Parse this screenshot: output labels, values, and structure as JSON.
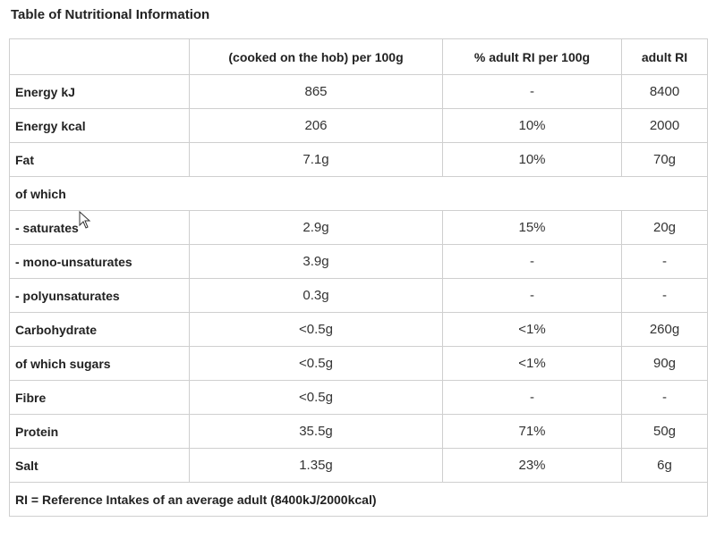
{
  "title": "Table of Nutritional Information",
  "headers": [
    "",
    "(cooked on the hob) per 100g",
    "% adult RI per 100g",
    "adult RI"
  ],
  "rows": [
    {
      "label": "Energy kJ",
      "per100g": "865",
      "ri_pct": "-",
      "adult_ri": "8400"
    },
    {
      "label": "Energy kcal",
      "per100g": "206",
      "ri_pct": "10%",
      "adult_ri": "2000"
    },
    {
      "label": "Fat",
      "per100g": "7.1g",
      "ri_pct": "10%",
      "adult_ri": "70g"
    },
    {
      "label": "of which"
    },
    {
      "label": "- saturates",
      "per100g": "2.9g",
      "ri_pct": "15%",
      "adult_ri": "20g"
    },
    {
      "label": "- mono-unsaturates",
      "per100g": "3.9g",
      "ri_pct": "-",
      "adult_ri": "-"
    },
    {
      "label": "- polyunsaturates",
      "per100g": "0.3g",
      "ri_pct": "-",
      "adult_ri": "-"
    },
    {
      "label": "Carbohydrate",
      "per100g": "<0.5g",
      "ri_pct": "<1%",
      "adult_ri": "260g"
    },
    {
      "label": "of which sugars",
      "per100g": "<0.5g",
      "ri_pct": "<1%",
      "adult_ri": "90g"
    },
    {
      "label": "Fibre",
      "per100g": "<0.5g",
      "ri_pct": "-",
      "adult_ri": "-"
    },
    {
      "label": "Protein",
      "per100g": "35.5g",
      "ri_pct": "71%",
      "adult_ri": "50g"
    },
    {
      "label": "Salt",
      "per100g": "1.35g",
      "ri_pct": "23%",
      "adult_ri": "6g"
    }
  ],
  "footnote": "RI = Reference Intakes of an average adult (8400kJ/2000kcal)",
  "icons": {
    "cursor": "mouse-pointer-icon"
  }
}
